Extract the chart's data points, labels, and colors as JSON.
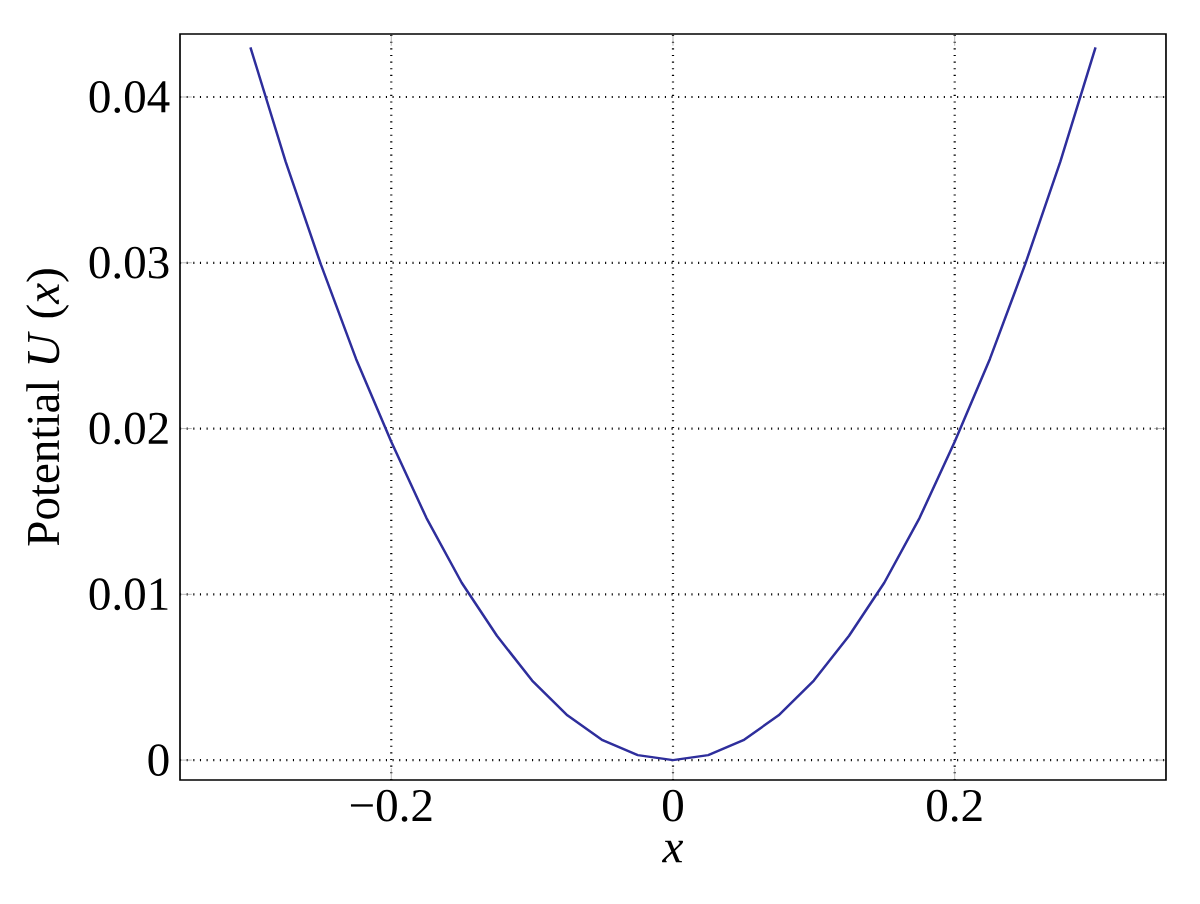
{
  "chart_data": {
    "type": "line",
    "xlabel": "*x*",
    "ylabel": "Potential *U* (*x*)",
    "x": [
      -0.3,
      -0.275,
      -0.25,
      -0.225,
      -0.2,
      -0.175,
      -0.15,
      -0.125,
      -0.1,
      -0.075,
      -0.05,
      -0.025,
      0,
      0.025,
      0.05,
      0.075,
      0.1,
      0.125,
      0.15,
      0.175,
      0.2,
      0.225,
      0.25,
      0.275,
      0.3
    ],
    "values": [
      0.043,
      0.0361,
      0.0299,
      0.0242,
      0.0192,
      0.0146,
      0.0107,
      0.0075,
      0.0048,
      0.0027,
      0.0012,
      0.0003,
      0,
      0.0003,
      0.0012,
      0.0027,
      0.0048,
      0.0075,
      0.0107,
      0.0146,
      0.0192,
      0.0242,
      0.0299,
      0.0361,
      0.043
    ],
    "color": "#2e2e9c",
    "xlim": [
      -0.35,
      0.35
    ],
    "ylim": [
      -0.0012,
      0.0438
    ],
    "xticks": [
      {
        "value": -0.2,
        "label": "−0.2"
      },
      0,
      0.2
    ],
    "yticks": [
      0,
      0.01,
      0.02,
      0.03,
      0.04
    ],
    "grid": true,
    "marker": "none",
    "line_style": "solid"
  }
}
